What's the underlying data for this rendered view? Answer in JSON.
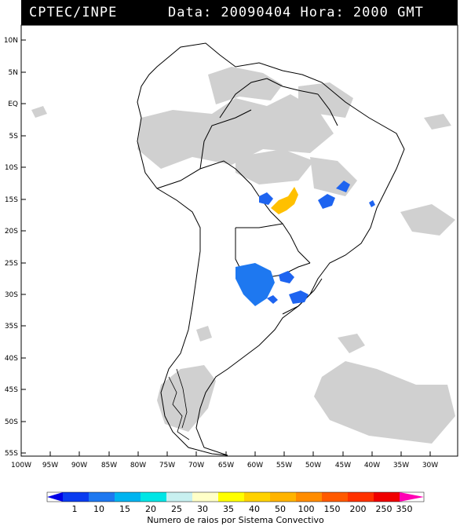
{
  "header": {
    "source": "CPTEC/INPE",
    "info": "Data: 20090404 Hora: 2000 GMT"
  },
  "lat_labels": [
    "10N",
    "5N",
    "EQ",
    "5S",
    "10S",
    "15S",
    "20S",
    "25S",
    "30S",
    "35S",
    "40S",
    "45S",
    "50S",
    "55S"
  ],
  "lon_labels": [
    "100W",
    "95W",
    "90W",
    "85W",
    "80W",
    "75W",
    "70W",
    "65W",
    "60W",
    "55W",
    "50W",
    "45W",
    "40W",
    "35W",
    "30W"
  ],
  "colorbar": {
    "values": [
      "1",
      "10",
      "15",
      "20",
      "25",
      "30",
      "35",
      "40",
      "50",
      "100",
      "150",
      "200",
      "250",
      "350"
    ],
    "colors": [
      "#0000e6",
      "#0a3cf0",
      "#1e78f0",
      "#00b4f0",
      "#00e6e6",
      "#c8f0f0",
      "#ffffc8",
      "#ffff00",
      "#ffd200",
      "#ffb400",
      "#ff8c00",
      "#ff5a00",
      "#ff3200",
      "#f00000",
      "#ff00b4"
    ],
    "title": "Numero de raios por Sistema Convectivo"
  }
}
